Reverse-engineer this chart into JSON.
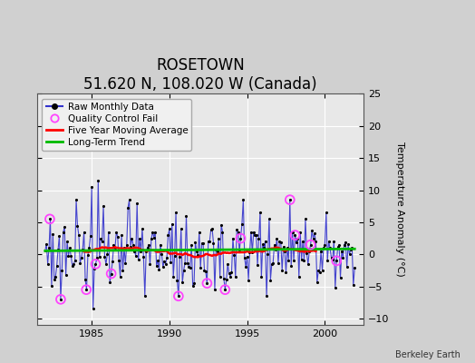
{
  "title": "ROSETOWN",
  "subtitle": "51.620 N, 108.020 W (Canada)",
  "ylabel": "Temperature Anomaly (°C)",
  "attribution": "Berkeley Earth",
  "xlim": [
    1981.5,
    2002.5
  ],
  "ylim": [
    -11,
    13
  ],
  "yticks": [
    -10,
    -5,
    0,
    5,
    10,
    15,
    20,
    25
  ],
  "xticks": [
    1985,
    1990,
    1995,
    2000
  ],
  "fig_bg_color": "#d0d0d0",
  "plot_bg_color": "#e8e8e8",
  "grid_color": "#ffffff",
  "raw_color": "#3333cc",
  "raw_lw": 0.8,
  "dot_color": "#000000",
  "dot_size": 5,
  "ma_color": "#ff0000",
  "ma_lw": 1.8,
  "trend_color": "#00bb00",
  "trend_lw": 2.0,
  "qc_color": "#ff44ff",
  "title_fontsize": 12,
  "subtitle_fontsize": 9,
  "label_fontsize": 8,
  "tick_fontsize": 8,
  "legend_fontsize": 7.5
}
